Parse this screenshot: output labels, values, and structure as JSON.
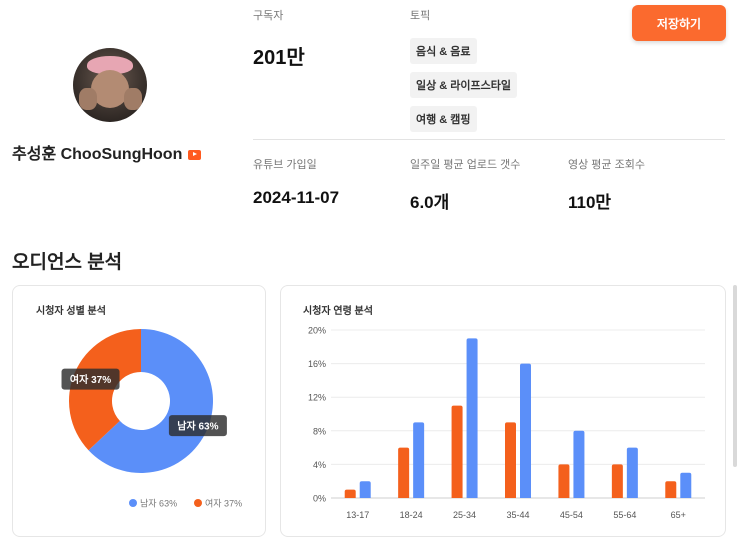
{
  "profile": {
    "name": "추성훈 ChooSungHoon",
    "platform_icon": "youtube-icon"
  },
  "stats": {
    "subscribers": {
      "label": "구독자",
      "value": "201만"
    },
    "topics_label": "토픽",
    "topics": [
      "음식 & 음료",
      "일상 & 라이프스타일",
      "여행 & 캠핑"
    ],
    "joined": {
      "label": "유튜브 가입일",
      "value": "2024-11-07"
    },
    "weekly_uploads": {
      "label": "일주일 평균 업로드 갯수",
      "value": "6.0개"
    },
    "avg_views": {
      "label": "영상 평균 조회수",
      "value": "110만"
    }
  },
  "save_button": {
    "label": "저장하기"
  },
  "audience": {
    "title": "오디언스 분석"
  },
  "colors": {
    "male": "#5b8ff9",
    "female": "#f4601c",
    "accent": "#fb6a2e"
  },
  "chart_data": [
    {
      "type": "pie",
      "title": "시청자 성별 분석",
      "slices": [
        {
          "name": "남자",
          "value": 63,
          "label": "남자 63%"
        },
        {
          "name": "여자",
          "value": 37,
          "label": "여자 37%"
        }
      ],
      "legend": [
        "남자 63%",
        "여자 37%"
      ],
      "legend_position": "bottom-right"
    },
    {
      "type": "bar",
      "title": "시청자 연령 분석",
      "categories": [
        "13-17",
        "18-24",
        "25-34",
        "35-44",
        "45-54",
        "55-64",
        "65+"
      ],
      "series": [
        {
          "color": "#f4601c",
          "values": [
            1,
            6,
            11,
            9,
            4,
            4,
            2
          ]
        },
        {
          "color": "#5b8ff9",
          "values": [
            2,
            9,
            19,
            16,
            8,
            6,
            3
          ]
        }
      ],
      "ylim": [
        0,
        20
      ],
      "yticks": [
        "0%",
        "4%",
        "8%",
        "12%",
        "16%",
        "20%"
      ],
      "grid": true
    }
  ]
}
